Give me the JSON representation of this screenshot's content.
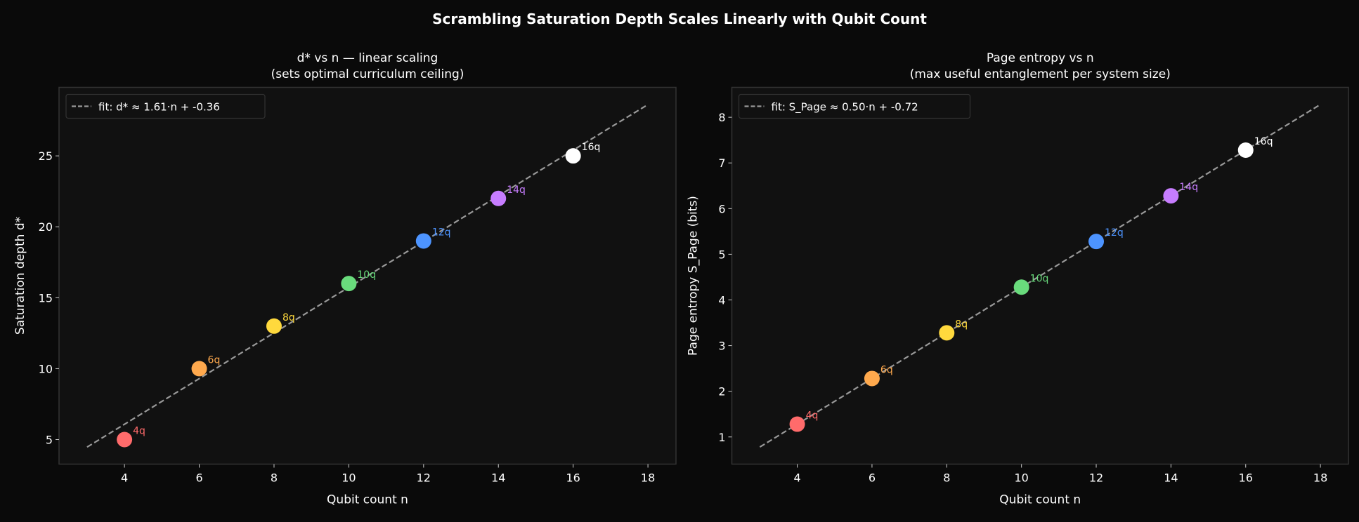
{
  "figure": {
    "title": "Scrambling Saturation Depth Scales Linearly with Qubit Count",
    "background": "#0a0a0a",
    "axes_background": "#111111"
  },
  "chart_data": [
    {
      "type": "scatter",
      "title_line1": "d* vs n — linear scaling",
      "title_line2": "(sets optimal curriculum ceiling)",
      "xlabel": "Qubit count n",
      "ylabel": "Saturation depth d*",
      "xlim": [
        2.25,
        18.75
      ],
      "ylim": [
        3.27,
        29.83
      ],
      "xticks": [
        4,
        6,
        8,
        10,
        12,
        14,
        16,
        18
      ],
      "yticks": [
        5,
        10,
        15,
        20,
        25
      ],
      "grid": false,
      "legend_position": "top-left",
      "points": [
        {
          "x": 4,
          "y": 5,
          "label": "4q",
          "color": "#ff6b6b"
        },
        {
          "x": 6,
          "y": 10,
          "label": "6q",
          "color": "#ffa94d"
        },
        {
          "x": 8,
          "y": 13,
          "label": "8q",
          "color": "#ffd93d"
        },
        {
          "x": 10,
          "y": 16,
          "label": "10q",
          "color": "#69db7c"
        },
        {
          "x": 12,
          "y": 19,
          "label": "12q",
          "color": "#4d94ff"
        },
        {
          "x": 14,
          "y": 22,
          "label": "14q",
          "color": "#c77dff"
        },
        {
          "x": 16,
          "y": 25,
          "label": "16q",
          "color": "#ffffff"
        }
      ],
      "fit": {
        "name": "fit: d* ≈ 1.61·n + -0.36",
        "slope": 1.61,
        "intercept": -0.36,
        "x_range": [
          3,
          18
        ],
        "color": "#999999",
        "style": "dashed"
      }
    },
    {
      "type": "scatter",
      "title_line1": "Page entropy vs n",
      "title_line2": "(max useful entanglement per system size)",
      "xlabel": "Qubit count n",
      "ylabel": "Page entropy S_Page (bits)",
      "xlim": [
        2.25,
        18.75
      ],
      "ylim": [
        0.405,
        8.655
      ],
      "xticks": [
        4,
        6,
        8,
        10,
        12,
        14,
        16,
        18
      ],
      "yticks": [
        1,
        2,
        3,
        4,
        5,
        6,
        7,
        8
      ],
      "grid": false,
      "legend_position": "top-left",
      "points": [
        {
          "x": 4,
          "y": 1.28,
          "label": "4q",
          "color": "#ff6b6b"
        },
        {
          "x": 6,
          "y": 2.28,
          "label": "6q",
          "color": "#ffa94d"
        },
        {
          "x": 8,
          "y": 3.28,
          "label": "8q",
          "color": "#ffd93d"
        },
        {
          "x": 10,
          "y": 4.28,
          "label": "10q",
          "color": "#69db7c"
        },
        {
          "x": 12,
          "y": 5.28,
          "label": "12q",
          "color": "#4d94ff"
        },
        {
          "x": 14,
          "y": 6.28,
          "label": "14q",
          "color": "#c77dff"
        },
        {
          "x": 16,
          "y": 7.28,
          "label": "16q",
          "color": "#ffffff"
        }
      ],
      "fit": {
        "name": "fit: S_Page ≈ 0.50·n + -0.72",
        "slope": 0.5,
        "intercept": -0.72,
        "x_range": [
          3,
          18
        ],
        "color": "#999999",
        "style": "dashed"
      }
    }
  ]
}
